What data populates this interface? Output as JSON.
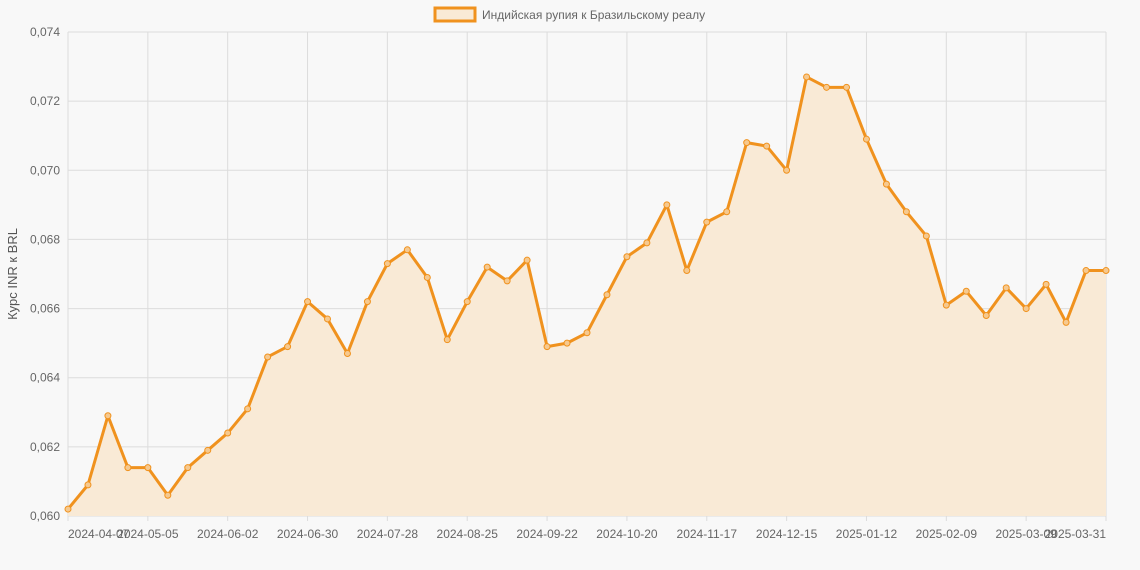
{
  "chart_data": {
    "type": "area",
    "title": "",
    "xlabel": "",
    "ylabel": "Курс INR к BRL",
    "ylim": [
      0.06,
      0.074
    ],
    "y_ticks": [
      "0,060",
      "0,062",
      "0,064",
      "0,066",
      "0,068",
      "0,070",
      "0,072",
      "0,074"
    ],
    "x_tick_labels": [
      "2024-04-07",
      "2024-05-05",
      "2024-06-02",
      "2024-06-30",
      "2024-07-28",
      "2024-08-25",
      "2024-09-22",
      "2024-10-20",
      "2024-11-17",
      "2024-12-15",
      "2025-01-12",
      "2025-02-09",
      "2025-03-09",
      "2025-03-31"
    ],
    "grid": true,
    "legend": "top-center",
    "series": [
      {
        "name": "Индийская рупия к Бразильскому реалу",
        "color": "#f0921e",
        "fill": "#f9ead6",
        "values": [
          0.0602,
          0.0609,
          0.0629,
          0.0614,
          0.0614,
          0.0606,
          0.0614,
          0.0619,
          0.0624,
          0.0631,
          0.0646,
          0.0649,
          0.0662,
          0.0657,
          0.0647,
          0.0662,
          0.0673,
          0.0677,
          0.0669,
          0.0651,
          0.0662,
          0.0672,
          0.0668,
          0.0674,
          0.0649,
          0.065,
          0.0653,
          0.0664,
          0.0675,
          0.0679,
          0.069,
          0.0671,
          0.0685,
          0.0688,
          0.0708,
          0.0707,
          0.07,
          0.0727,
          0.0724,
          0.0724,
          0.0709,
          0.0696,
          0.0688,
          0.0681,
          0.0661,
          0.0665,
          0.0658,
          0.0666,
          0.066,
          0.0667,
          0.0656,
          0.0671,
          0.0671
        ]
      }
    ]
  }
}
